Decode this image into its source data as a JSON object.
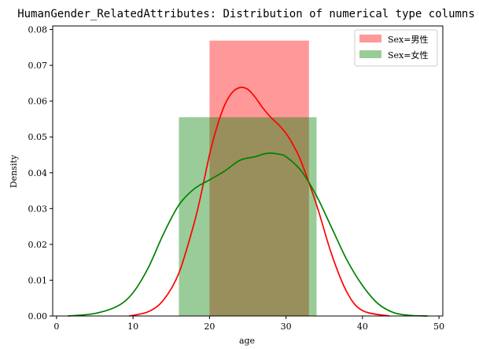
{
  "chart_data": {
    "type": "area",
    "title": "HumanGender_RelatedAttributes: Distribution of numerical type columns",
    "xlabel": "age",
    "ylabel": "Density",
    "xlim": [
      -0.5,
      50.5
    ],
    "ylim": [
      0,
      0.081
    ],
    "xticks": [
      0,
      10,
      20,
      30,
      40,
      50
    ],
    "yticks": [
      0.0,
      0.01,
      0.02,
      0.03,
      0.04,
      0.05,
      0.06,
      0.07,
      0.08
    ],
    "ytick_labels": [
      "0.00",
      "0.01",
      "0.02",
      "0.03",
      "0.04",
      "0.05",
      "0.06",
      "0.07",
      "0.08"
    ],
    "grid": false,
    "legend_position": "top-right",
    "series": [
      {
        "name": "Sex=男性",
        "color": "#ff0000",
        "hist_alpha": 0.4,
        "bins": [
          {
            "x0": 20,
            "x1": 33,
            "density": 0.0769
          }
        ],
        "kde": {
          "x": [
            9.5,
            12,
            14,
            16,
            18,
            19,
            20,
            21,
            22,
            23,
            24,
            25,
            26,
            27,
            28,
            29,
            30,
            31,
            32,
            34,
            36,
            38,
            40,
            43.5
          ],
          "y": [
            0.0,
            0.0012,
            0.0045,
            0.012,
            0.026,
            0.035,
            0.045,
            0.053,
            0.059,
            0.0625,
            0.0638,
            0.0633,
            0.061,
            0.058,
            0.0555,
            0.0535,
            0.051,
            0.0475,
            0.043,
            0.031,
            0.017,
            0.0065,
            0.0015,
            0.0
          ]
        }
      },
      {
        "name": "Sex=女性",
        "color": "#008000",
        "hist_alpha": 0.4,
        "bins": [
          {
            "x0": 16,
            "x1": 34,
            "density": 0.0555
          }
        ],
        "kde": {
          "x": [
            1.5,
            5,
            8,
            10,
            12,
            14,
            16,
            18,
            20,
            22,
            24,
            26,
            27,
            28,
            29,
            30,
            32,
            34,
            36,
            38,
            40,
            42,
            44,
            46,
            48.5
          ],
          "y": [
            0.0,
            0.0007,
            0.0028,
            0.0065,
            0.0135,
            0.023,
            0.031,
            0.0355,
            0.038,
            0.0405,
            0.0435,
            0.0445,
            0.0452,
            0.0455,
            0.0452,
            0.0445,
            0.0405,
            0.0335,
            0.0245,
            0.0155,
            0.0085,
            0.0035,
            0.001,
            0.0002,
            0.0
          ]
        }
      }
    ]
  }
}
